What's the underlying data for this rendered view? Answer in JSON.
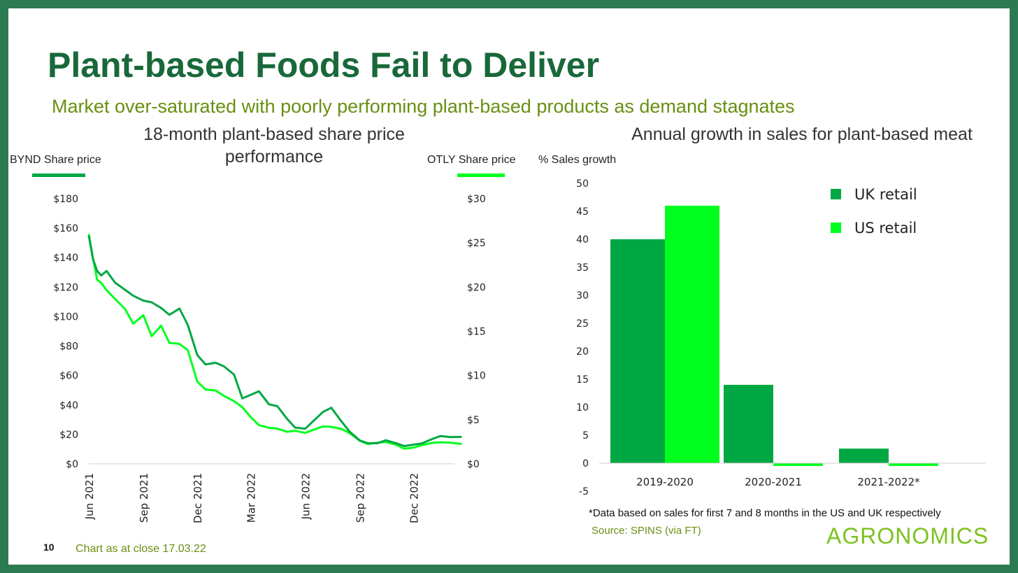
{
  "title": "Plant-based Foods Fail to Deliver",
  "subtitle": "Market over-saturated with poorly performing plant-based products as demand stagnates",
  "page_number": "10",
  "chart_note": "Chart as at close 17.03.22",
  "footnote": "*Data based on sales for first 7 and 8 months in the US and UK respectively",
  "source": "Source: SPINS (via FT)",
  "logo": "AGRONOMICS",
  "colors": {
    "dark_green": "#00a843",
    "bright_green": "#00ff1e",
    "title": "#19683a",
    "olive": "#6a8f12"
  },
  "chart_data": [
    {
      "type": "line",
      "title": "18-month plant-based share price performance",
      "ylabel_left": "BYND Share price",
      "ylabel_right": "OTLY Share price",
      "ylim_left": [
        0,
        180
      ],
      "ylim_right": [
        0,
        30
      ],
      "yticks_left": [
        "$0",
        "$20",
        "$40",
        "$60",
        "$80",
        "$100",
        "$120",
        "$140",
        "$160",
        "$180"
      ],
      "yticks_right": [
        "$0",
        "$5",
        "$10",
        "$15",
        "$20",
        "$25",
        "$30"
      ],
      "xticks": [
        "Jun 2021",
        "Sep 2021",
        "Dec 2021",
        "Mar 2022",
        "Jun 2022",
        "Sep 2022",
        "Dec 2022"
      ],
      "xrange": [
        "2021-06-01",
        "2023-02-20"
      ],
      "x": [
        "2021-06-01",
        "2021-06-08",
        "2021-06-15",
        "2021-06-22",
        "2021-07-01",
        "2021-07-15",
        "2021-08-01",
        "2021-08-15",
        "2021-09-01",
        "2021-09-15",
        "2021-10-01",
        "2021-10-15",
        "2021-11-01",
        "2021-11-15",
        "2021-12-01",
        "2021-12-15",
        "2022-01-01",
        "2022-01-15",
        "2022-02-01",
        "2022-02-15",
        "2022-03-01",
        "2022-03-15",
        "2022-04-01",
        "2022-04-15",
        "2022-05-01",
        "2022-05-15",
        "2022-06-01",
        "2022-06-15",
        "2022-07-01",
        "2022-07-15",
        "2022-08-01",
        "2022-08-15",
        "2022-09-01",
        "2022-09-15",
        "2022-10-01",
        "2022-10-15",
        "2022-11-01",
        "2022-11-15",
        "2022-12-01",
        "2022-12-15",
        "2023-01-01",
        "2023-01-15",
        "2023-02-01",
        "2023-02-20"
      ],
      "series": [
        {
          "name": "BYND",
          "axis": "left",
          "color": "#00a843",
          "values": [
            155,
            140,
            132,
            128,
            130,
            122,
            118,
            115,
            112,
            110,
            105,
            100,
            105,
            95,
            75,
            68,
            68,
            65,
            60,
            45,
            48,
            50,
            40,
            38,
            30,
            25,
            25,
            30,
            35,
            37,
            28,
            22,
            17,
            15,
            14,
            15,
            13,
            12,
            14,
            15,
            17,
            18,
            17,
            18
          ]
        },
        {
          "name": "OTLY",
          "axis": "right",
          "color": "#00ff1e",
          "values": [
            26,
            23.5,
            21,
            20.5,
            19.5,
            18.5,
            17.5,
            16,
            17,
            14.5,
            15.5,
            13.5,
            13.5,
            13,
            9.5,
            8.5,
            8.2,
            7.5,
            7,
            6.5,
            5.5,
            4.5,
            4,
            3.8,
            3.5,
            3.8,
            3.7,
            4,
            4.2,
            4,
            3.8,
            3.5,
            2.8,
            2.4,
            2.4,
            2.3,
            2,
            1.7,
            2,
            2.3,
            2.4,
            2.3,
            2.2,
            2.2
          ]
        }
      ]
    },
    {
      "type": "bar",
      "title": "Annual growth in sales for plant-based meat",
      "ylabel": "% Sales growth",
      "ylim": [
        -5,
        50
      ],
      "yticks": [
        "-5",
        "0",
        "5",
        "10",
        "15",
        "20",
        "25",
        "30",
        "35",
        "40",
        "45",
        "50"
      ],
      "categories": [
        "2019-2020",
        "2020-2021",
        "2021-2022*"
      ],
      "legend_position": "top-right",
      "series": [
        {
          "name": "UK retail",
          "color": "#00a843",
          "values": [
            40,
            14,
            2.6
          ]
        },
        {
          "name": "US retail",
          "color": "#00ff1e",
          "values": [
            46,
            -0.5,
            -0.5
          ]
        }
      ]
    }
  ]
}
